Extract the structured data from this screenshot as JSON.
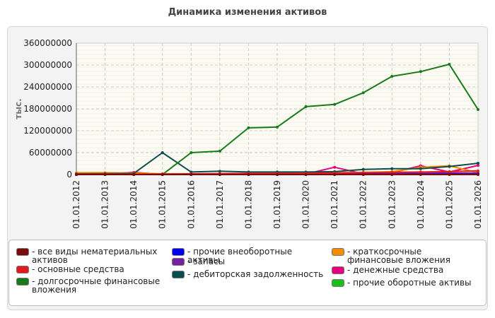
{
  "title": "Динамика изменения активов",
  "chart_data": {
    "type": "line",
    "ylabel": "тыс.",
    "xlabel": "",
    "ylim": [
      0,
      360000000
    ],
    "yticks": [
      0,
      60000000,
      120000000,
      180000000,
      240000000,
      300000000,
      360000000
    ],
    "ytick_labels": [
      "0",
      "60000000",
      "120000000",
      "180000000",
      "240000000",
      "300000000",
      "360000000"
    ],
    "categories": [
      "01.01.2012",
      "01.01.2013",
      "01.01.2014",
      "01.01.2015",
      "01.01.2016",
      "01.01.2017",
      "01.01.2018",
      "01.01.2019",
      "01.01.2020",
      "01.01.2021",
      "01.01.2022",
      "01.01.2023",
      "01.01.2024",
      "01.01.2025",
      "01.01.2026"
    ],
    "grid": true,
    "legend_position": "bottom",
    "series": [
      {
        "name": "- все виды нематериальных активов",
        "color": "#7a0b0b",
        "values": [
          0,
          0,
          0,
          0,
          0,
          0,
          0,
          0,
          0,
          0,
          0,
          0,
          0,
          0,
          0
        ]
      },
      {
        "name": "- основные средства",
        "color": "#e31a1c",
        "values": [
          1000000,
          1000000,
          1000000,
          1500000,
          2000000,
          2500000,
          3000000,
          3000000,
          3500000,
          4000000,
          5000000,
          6000000,
          7000000,
          8000000,
          10000000
        ]
      },
      {
        "name": "- долгосрочные финансовые вложения",
        "color": "#1a7a1a",
        "values": [
          0,
          0,
          0,
          0,
          60000000,
          64000000,
          128000000,
          130000000,
          186000000,
          192000000,
          224000000,
          269000000,
          282000000,
          302000000,
          178000000
        ]
      },
      {
        "name": "- прочие внеоборотные активы",
        "color": "#0000ee",
        "values": [
          0,
          0,
          0,
          0,
          0,
          0,
          0,
          0,
          0,
          0,
          500000,
          500000,
          1000000,
          1000000,
          1000000
        ]
      },
      {
        "name": "- запасы",
        "color": "#7b1fa2",
        "values": [
          500000,
          500000,
          500000,
          500000,
          1000000,
          1000000,
          1500000,
          2000000,
          2000000,
          2500000,
          3000000,
          3000000,
          3500000,
          4000000,
          4000000
        ]
      },
      {
        "name": "- дебиторская задолженность",
        "color": "#0b4d4d",
        "values": [
          2000000,
          2500000,
          3000000,
          60000000,
          7000000,
          9000000,
          7000000,
          7000000,
          7000000,
          8000000,
          14000000,
          16000000,
          16000000,
          22000000,
          31000000
        ]
      },
      {
        "name": "- краткосрочные финансовые вложения",
        "color": "#f28c00",
        "values": [
          5000000,
          5000000,
          4000000,
          2000000,
          2000000,
          2000000,
          3000000,
          3000000,
          4000000,
          5000000,
          6000000,
          8000000,
          20000000,
          24000000,
          5000000
        ]
      },
      {
        "name": "- денежные средства",
        "color": "#e6007e",
        "values": [
          500000,
          500000,
          6000000,
          500000,
          1000000,
          1000000,
          1000000,
          1000000,
          1500000,
          20000000,
          2000000,
          5000000,
          24000000,
          7000000,
          25000000
        ]
      },
      {
        "name": "- прочие оборотные активы",
        "color": "#18c018",
        "values": [
          0,
          0,
          0,
          0,
          0,
          0,
          0,
          0,
          0,
          0,
          500000,
          500000,
          500000,
          500000,
          500000
        ]
      }
    ]
  }
}
